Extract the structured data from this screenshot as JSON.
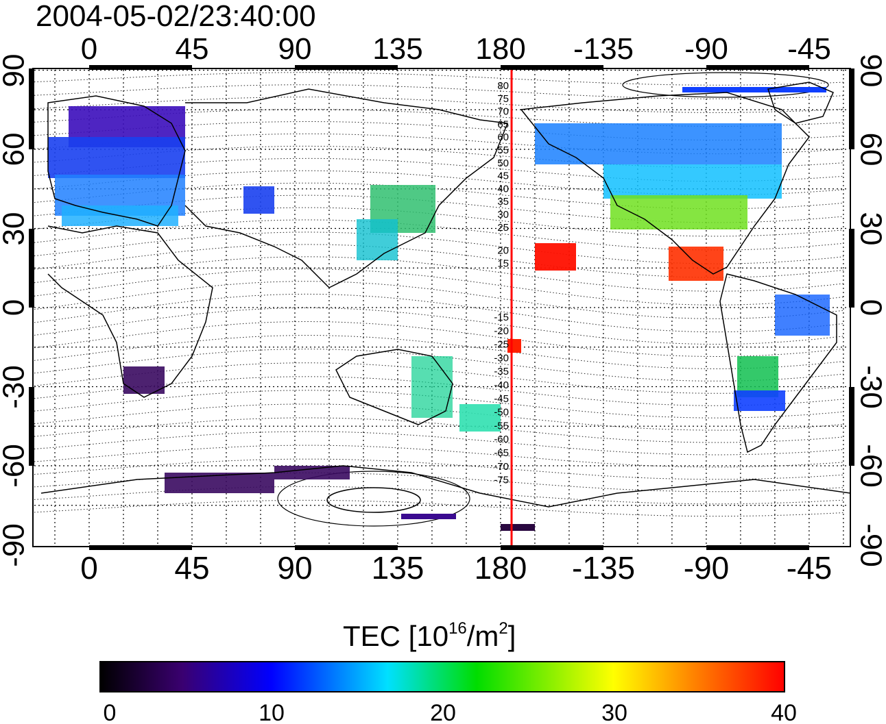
{
  "title": "2004-05-02/23:40:00",
  "map": {
    "top_lon_ticks": [
      "0",
      "45",
      "90",
      "135",
      "180",
      "-135",
      "-90",
      "-45"
    ],
    "bottom_lon_ticks": [
      "0",
      "45",
      "90",
      "135",
      "180",
      "-135",
      "-90",
      "-45"
    ],
    "left_lat_ticks": [
      "90",
      "60",
      "30",
      "0",
      "-30",
      "-60",
      "-90"
    ],
    "right_lat_ticks": [
      "90",
      "60",
      "30",
      "0",
      "-30",
      "-60",
      "-90"
    ],
    "red_meridian_lon": -175,
    "magnetic_lat_labels": [
      "80",
      "75",
      "70",
      "65",
      "60",
      "55",
      "50",
      "45",
      "40",
      "35",
      "30",
      "25",
      "20",
      "15",
      "-15",
      "-20",
      "-25",
      "-30",
      "-35",
      "-40",
      "-45",
      "-50",
      "-55",
      "-60",
      "-65",
      "-70",
      "-75"
    ]
  },
  "colorbar": {
    "title_prefix": "TEC  [10",
    "title_exp1": "16",
    "title_mid": "/m",
    "title_exp2": "2",
    "title_suffix": "]",
    "ticks": [
      "0",
      "10",
      "20",
      "30",
      "40"
    ],
    "range": [
      0,
      40
    ],
    "colormap": [
      "#000000",
      "#3a0070",
      "#0000ff",
      "#00e0ff",
      "#00dd00",
      "#ffff00",
      "#ff8000",
      "#ff0000"
    ]
  }
}
